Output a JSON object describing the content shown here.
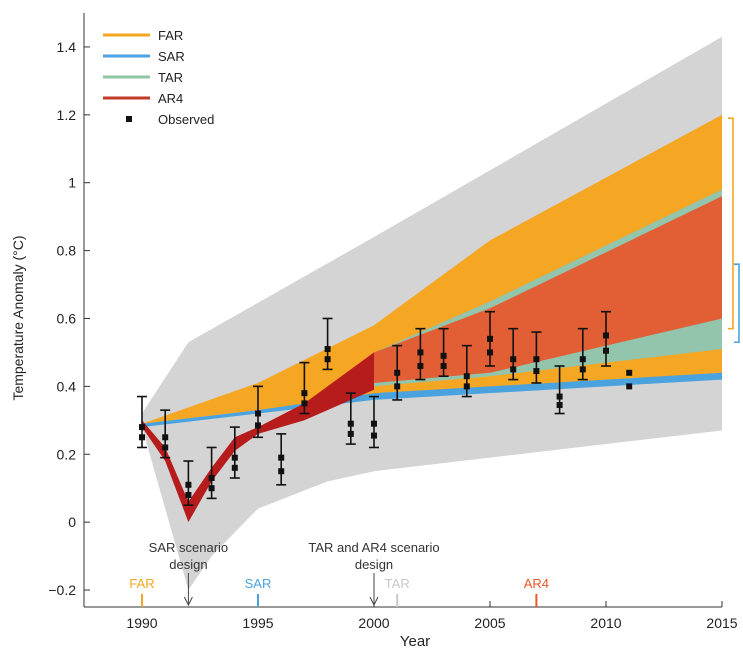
{
  "chart_data": {
    "type": "area",
    "xlabel": "Year",
    "ylabel": "Temperature Anomaly (°C)",
    "xlim": [
      1987.5,
      2015
    ],
    "ylim": [
      -0.25,
      1.5
    ],
    "x_ticks": [
      1990,
      1995,
      2000,
      2005,
      2010,
      2015
    ],
    "y_ticks": [
      -0.2,
      0,
      0.2,
      0.4,
      0.6,
      0.8,
      1,
      1.2,
      1.4
    ],
    "x_tick_labels": [
      "1990",
      "1995",
      "2000",
      "2005",
      "2010",
      "2015"
    ],
    "y_tick_labels": [
      "−0.2",
      "0",
      "0.2",
      "0.4",
      "0.6",
      "0.8",
      "1",
      "1.2",
      "1.4"
    ],
    "legend": {
      "position": "top-left",
      "entries": [
        {
          "label": "FAR",
          "color": "#f5a623"
        },
        {
          "label": "SAR",
          "color": "#4aa3df"
        },
        {
          "label": "TAR",
          "color": "#8fc5a3"
        },
        {
          "label": "AR4",
          "color": "#c0392b"
        },
        {
          "label": "Observed",
          "color": "#111111"
        }
      ]
    },
    "colors": {
      "envelope": "#d4d4d4",
      "FAR": "#f5a623",
      "SAR": "#4aa3df",
      "TAR": "#93c4ac",
      "AR4_dark": "#b71c1c",
      "AR4_light": "#e8562a",
      "observed": "#111111"
    },
    "bands": {
      "envelope": {
        "upper": [
          [
            1990,
            0.32
          ],
          [
            1992,
            0.53
          ],
          [
            2000,
            0.84
          ],
          [
            2015,
            1.43
          ]
        ],
        "lower": [
          [
            1990,
            0.28
          ],
          [
            1992,
            -0.2
          ],
          [
            1993,
            -0.1
          ],
          [
            1995,
            0.04
          ],
          [
            1998,
            0.12
          ],
          [
            2000,
            0.15
          ],
          [
            2015,
            0.27
          ]
        ]
      },
      "FAR": {
        "upper": [
          [
            1990,
            0.29
          ],
          [
            1995,
            0.41
          ],
          [
            2000,
            0.58
          ],
          [
            2005,
            0.83
          ],
          [
            2015,
            1.2
          ]
        ],
        "lower": [
          [
            1990,
            0.29
          ],
          [
            1995,
            0.33
          ],
          [
            2000,
            0.37
          ],
          [
            2015,
            0.44
          ]
        ]
      },
      "SAR": {
        "upper": [
          [
            1990,
            0.29
          ],
          [
            1995,
            0.33
          ],
          [
            2000,
            0.38
          ],
          [
            2015,
            0.44
          ]
        ],
        "lower": [
          [
            1990,
            0.28
          ],
          [
            1995,
            0.32
          ],
          [
            2000,
            0.36
          ],
          [
            2015,
            0.42
          ]
        ]
      },
      "TAR": {
        "upper": [
          [
            2000,
            0.5
          ],
          [
            2005,
            0.65
          ],
          [
            2015,
            0.98
          ]
        ],
        "lower": [
          [
            2000,
            0.4
          ],
          [
            2005,
            0.43
          ],
          [
            2015,
            0.51
          ]
        ]
      },
      "AR4": {
        "upper": [
          [
            2000,
            0.5
          ],
          [
            2005,
            0.63
          ],
          [
            2015,
            0.96
          ]
        ],
        "lower": [
          [
            2000,
            0.41
          ],
          [
            2005,
            0.44
          ],
          [
            2015,
            0.6
          ]
        ]
      },
      "AR4_hindcast": {
        "upper": [
          [
            1990,
            0.3
          ],
          [
            1991,
            0.22
          ],
          [
            1992,
            0.06
          ],
          [
            1993,
            0.16
          ],
          [
            1994,
            0.25
          ],
          [
            1995,
            0.28
          ],
          [
            1997,
            0.35
          ],
          [
            2000,
            0.5
          ]
        ],
        "lower": [
          [
            1990,
            0.28
          ],
          [
            1991,
            0.18
          ],
          [
            1992,
            0.0
          ],
          [
            1993,
            0.12
          ],
          [
            1994,
            0.21
          ],
          [
            1995,
            0.26
          ],
          [
            1997,
            0.3
          ],
          [
            2000,
            0.39
          ]
        ]
      }
    },
    "observed": [
      {
        "x": 1990,
        "y": 0.28,
        "lo": 0.22,
        "hi": 0.37
      },
      {
        "x": 1991,
        "y": 0.25,
        "lo": 0.19,
        "hi": 0.33
      },
      {
        "x": 1992,
        "y": 0.11,
        "lo": 0.05,
        "hi": 0.18
      },
      {
        "x": 1993,
        "y": 0.13,
        "lo": 0.07,
        "hi": 0.22
      },
      {
        "x": 1994,
        "y": 0.19,
        "lo": 0.13,
        "hi": 0.28
      },
      {
        "x": 1995,
        "y": 0.32,
        "lo": 0.25,
        "hi": 0.4
      },
      {
        "x": 1996,
        "y": 0.19,
        "lo": 0.11,
        "hi": 0.26
      },
      {
        "x": 1997,
        "y": 0.38,
        "lo": 0.32,
        "hi": 0.47
      },
      {
        "x": 1998,
        "y": 0.51,
        "lo": 0.45,
        "hi": 0.6
      },
      {
        "x": 1999,
        "y": 0.29,
        "lo": 0.23,
        "hi": 0.38
      },
      {
        "x": 2000,
        "y": 0.29,
        "lo": 0.22,
        "hi": 0.37
      },
      {
        "x": 2001,
        "y": 0.44,
        "lo": 0.36,
        "hi": 0.52
      },
      {
        "x": 2002,
        "y": 0.5,
        "lo": 0.42,
        "hi": 0.57
      },
      {
        "x": 2003,
        "y": 0.49,
        "lo": 0.43,
        "hi": 0.57
      },
      {
        "x": 2004,
        "y": 0.43,
        "lo": 0.37,
        "hi": 0.52
      },
      {
        "x": 2005,
        "y": 0.54,
        "lo": 0.46,
        "hi": 0.62
      },
      {
        "x": 2006,
        "y": 0.48,
        "lo": 0.42,
        "hi": 0.57
      },
      {
        "x": 2007,
        "y": 0.48,
        "lo": 0.41,
        "hi": 0.56
      },
      {
        "x": 2008,
        "y": 0.37,
        "lo": 0.32,
        "hi": 0.46
      },
      {
        "x": 2009,
        "y": 0.48,
        "lo": 0.42,
        "hi": 0.57
      },
      {
        "x": 2010,
        "y": 0.55,
        "lo": 0.46,
        "hi": 0.62
      },
      {
        "x": 2011,
        "y": 0.42
      }
    ],
    "annotations": [
      {
        "text_lines": [
          "SAR scenario",
          "design"
        ],
        "year": 1992
      },
      {
        "text_lines": [
          "TAR and AR4 scenario",
          "design"
        ],
        "year": 2000
      }
    ],
    "report_markers": [
      {
        "label": "FAR",
        "year": 1990,
        "color": "#f5a623"
      },
      {
        "label": "SAR",
        "year": 1995,
        "color": "#4aa3df"
      },
      {
        "label": "TAR",
        "year": 2001,
        "color": "#c8c8c8"
      },
      {
        "label": "AR4",
        "year": 2007,
        "color": "#e8562a"
      }
    ],
    "right_brackets": [
      {
        "color": "#f5a623",
        "range": [
          0.57,
          1.19
        ]
      },
      {
        "color": "#4aa3df",
        "range": [
          0.53,
          0.76
        ]
      }
    ]
  }
}
